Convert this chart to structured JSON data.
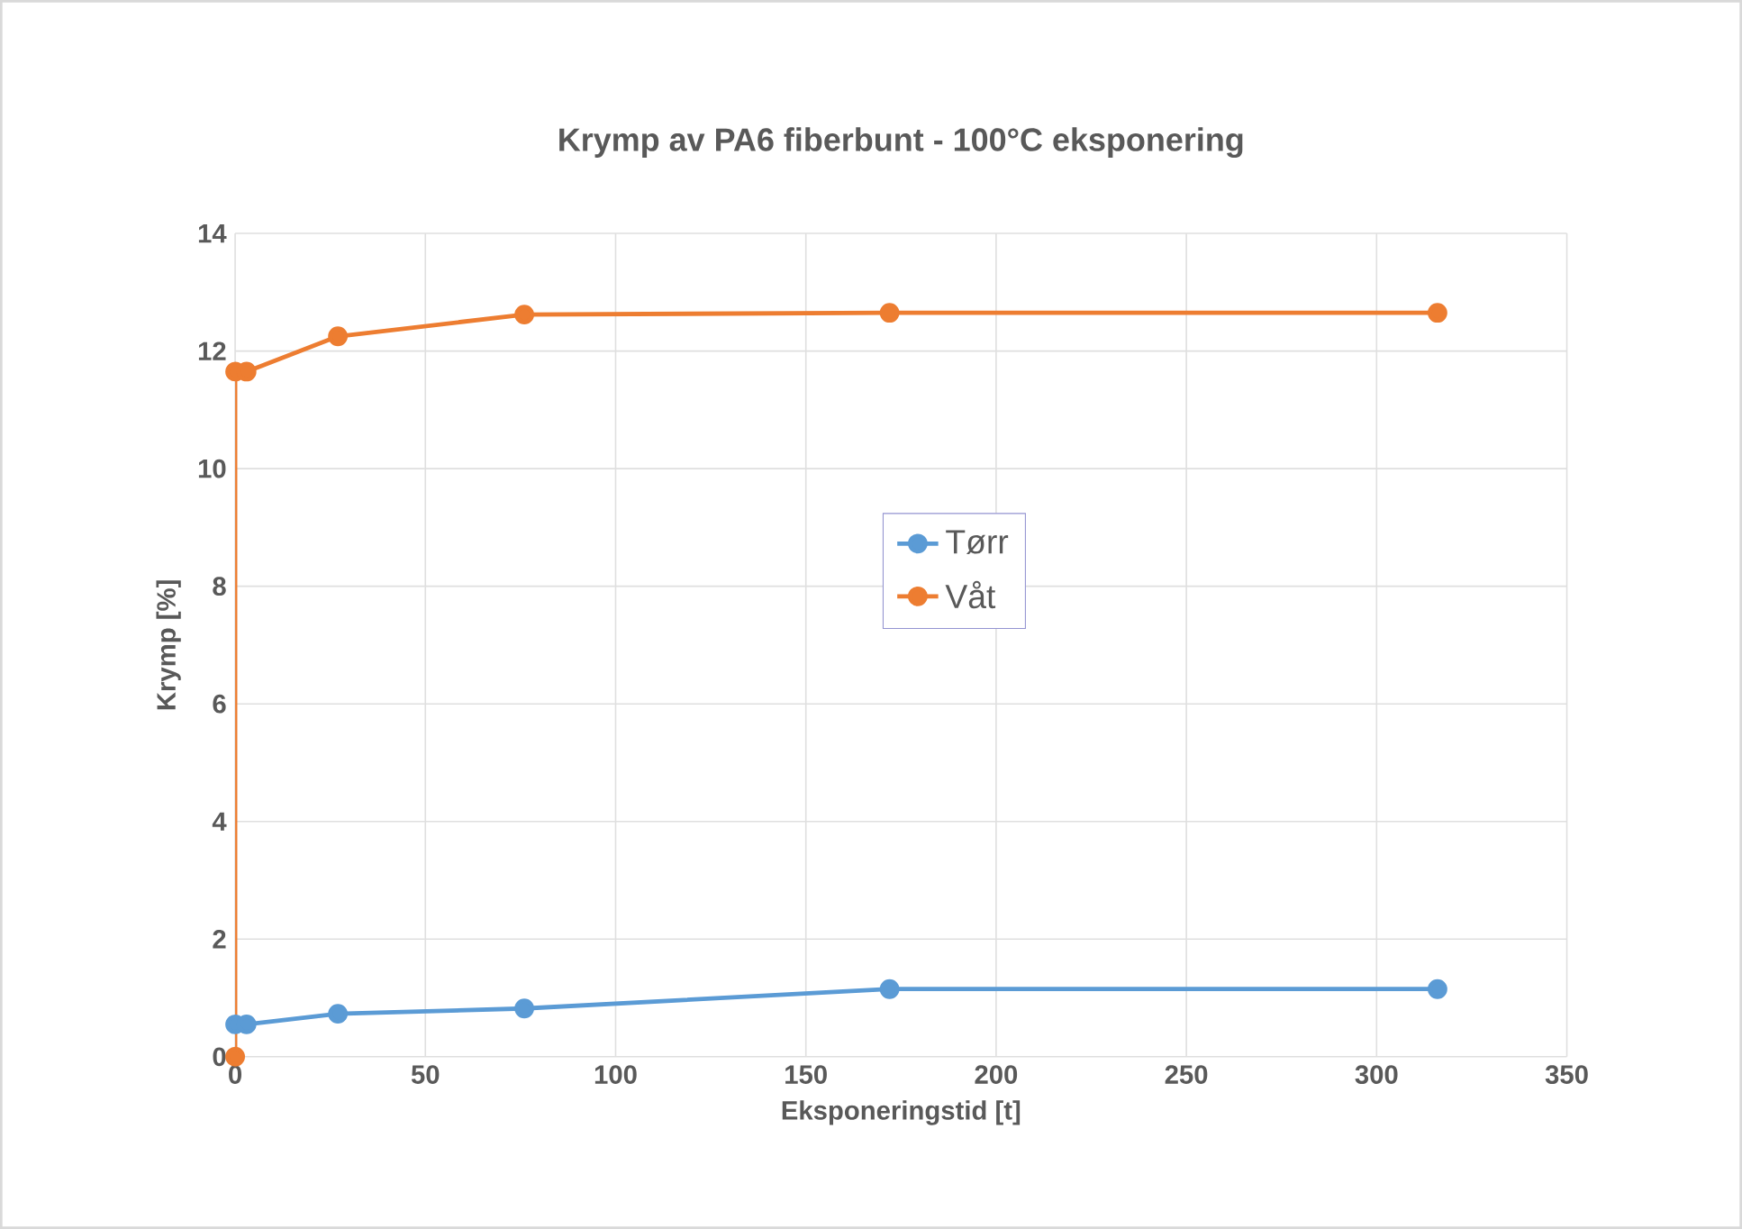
{
  "chart_data": {
    "type": "line",
    "title": "Krymp av PA6 fiberbunt - 100°C eksponering",
    "xlabel": "Eksponeringstid [t]",
    "ylabel": "Krymp [%]",
    "xlim": [
      0,
      350
    ],
    "xticks": [
      0,
      50,
      100,
      150,
      200,
      250,
      300,
      350
    ],
    "ylim": [
      0,
      14
    ],
    "yticks": [
      0,
      2,
      4,
      6,
      8,
      10,
      12,
      14
    ],
    "grid": true,
    "legend": "center",
    "marker": "circle",
    "line_style": "solid",
    "series": [
      {
        "name": "Tørr",
        "color": "#5b9bd5",
        "x": [
          0,
          3,
          27,
          76,
          172,
          316
        ],
        "values": [
          0.55,
          0.55,
          0.73,
          0.82,
          1.15,
          1.15
        ]
      },
      {
        "name": "Våt",
        "color": "#ed7d31",
        "x": [
          0,
          0,
          3,
          27,
          76,
          172,
          316
        ],
        "values": [
          0,
          11.65,
          11.65,
          12.25,
          12.62,
          12.65,
          12.65
        ]
      }
    ]
  }
}
